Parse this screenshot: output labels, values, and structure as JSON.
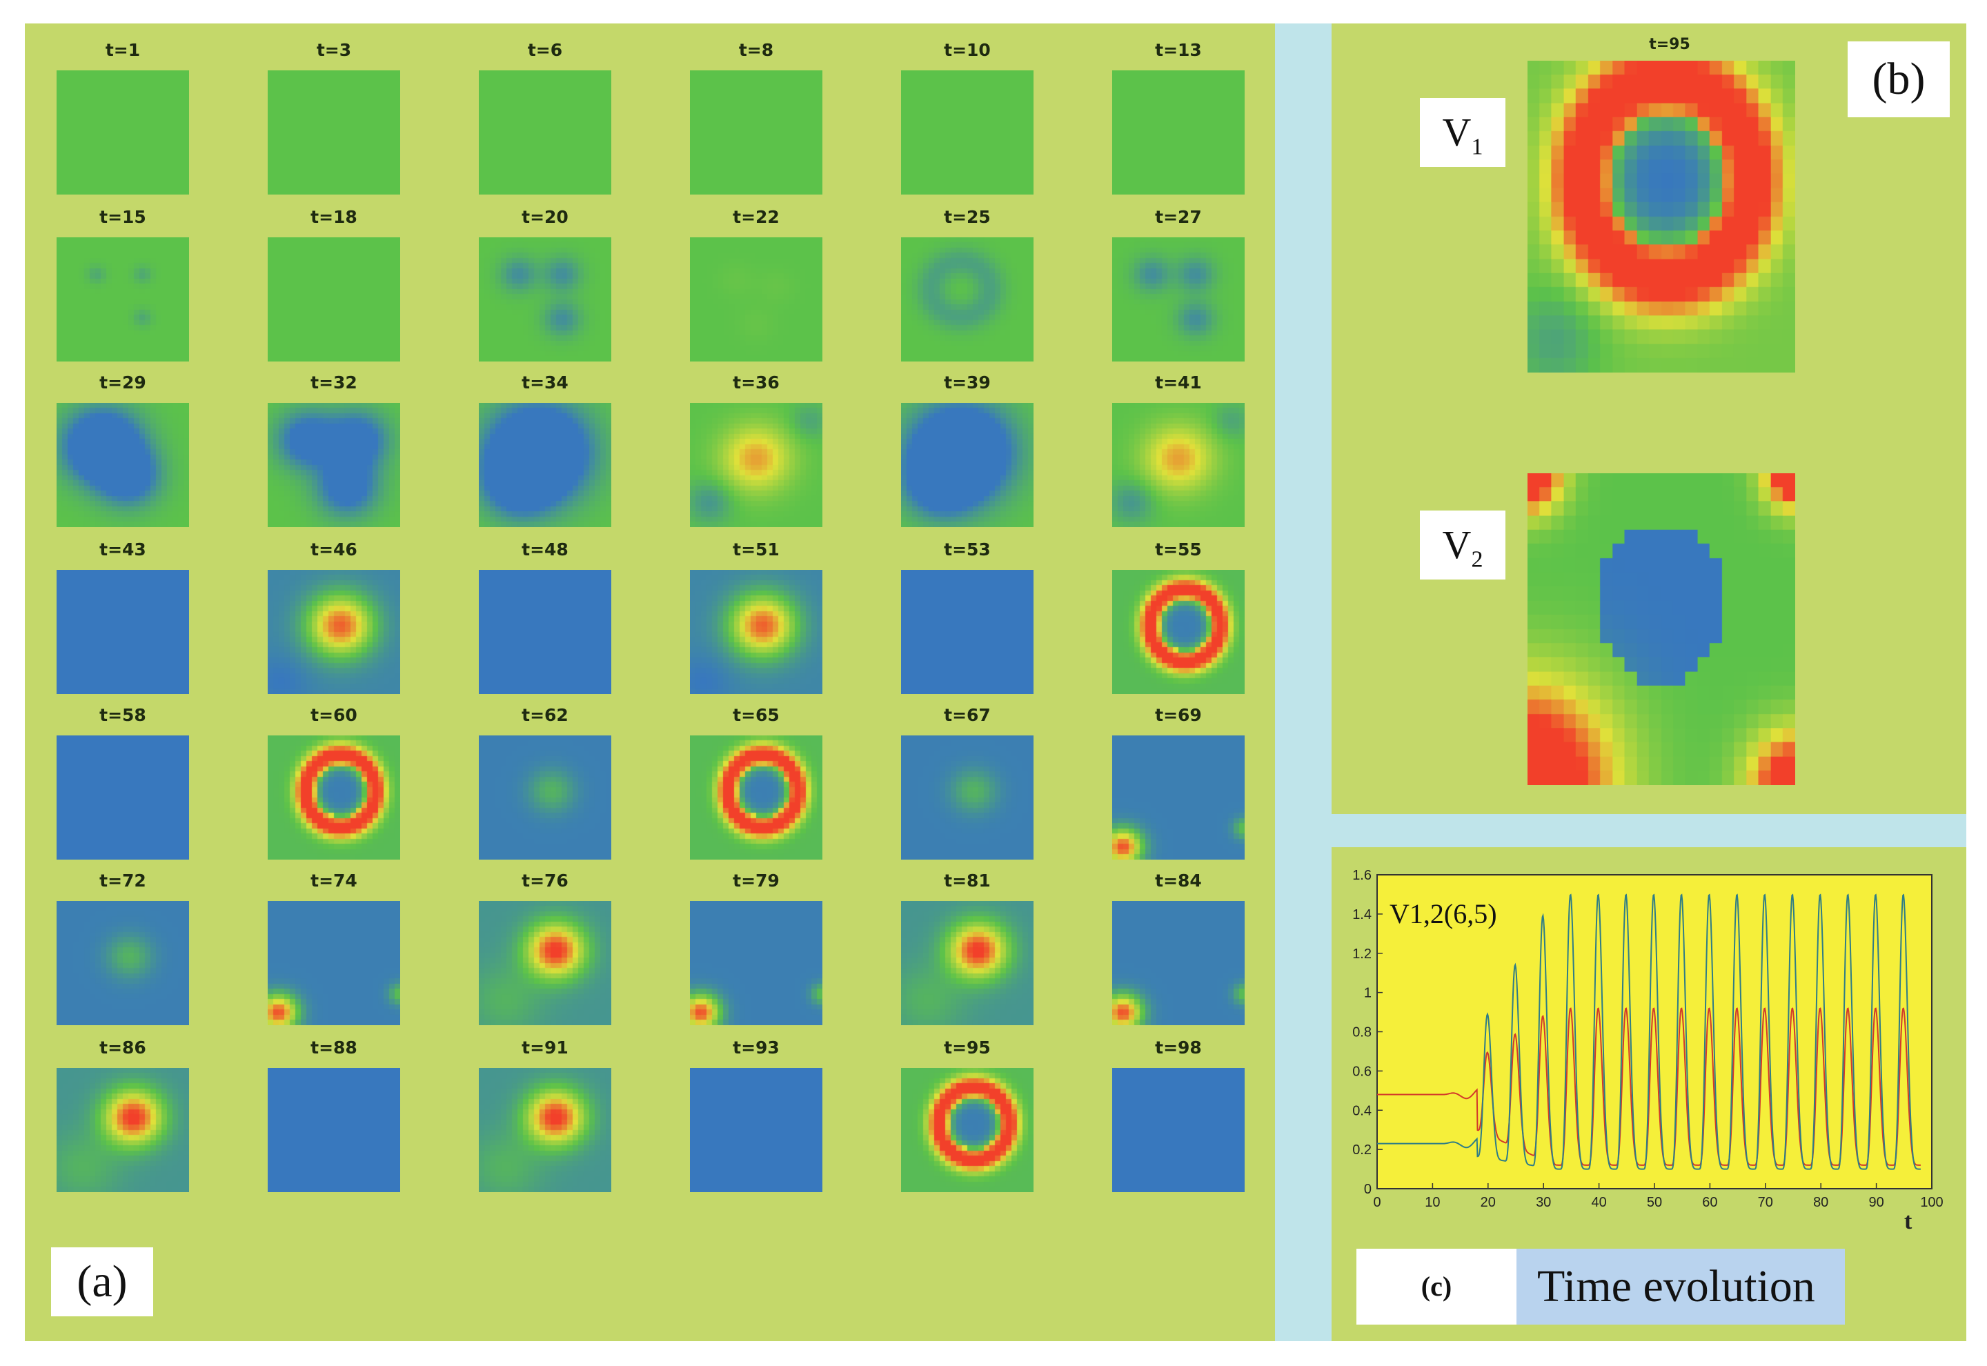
{
  "panel_a": {
    "label": "(a)",
    "frames": [
      {
        "t": "t=1",
        "pattern": "flat"
      },
      {
        "t": "t=3",
        "pattern": "flat"
      },
      {
        "t": "t=6",
        "pattern": "flat"
      },
      {
        "t": "t=8",
        "pattern": "flat"
      },
      {
        "t": "t=10",
        "pattern": "flat"
      },
      {
        "t": "t=13",
        "pattern": "flat"
      },
      {
        "t": "t=15",
        "pattern": "seeds"
      },
      {
        "t": "t=18",
        "pattern": "flat"
      },
      {
        "t": "t=20",
        "pattern": "three-blobs"
      },
      {
        "t": "t=22",
        "pattern": "faint"
      },
      {
        "t": "t=25",
        "pattern": "ring-green"
      },
      {
        "t": "t=27",
        "pattern": "three-blobs"
      },
      {
        "t": "t=29",
        "pattern": "blob-blue"
      },
      {
        "t": "t=32",
        "pattern": "three-large"
      },
      {
        "t": "t=34",
        "pattern": "blob-blue-large"
      },
      {
        "t": "t=36",
        "pattern": "cross-yellow"
      },
      {
        "t": "t=39",
        "pattern": "blob-blue-large"
      },
      {
        "t": "t=41",
        "pattern": "cross-yellow"
      },
      {
        "t": "t=43",
        "pattern": "all-blue"
      },
      {
        "t": "t=46",
        "pattern": "hot-center"
      },
      {
        "t": "t=48",
        "pattern": "all-blue"
      },
      {
        "t": "t=51",
        "pattern": "hot-center"
      },
      {
        "t": "t=53",
        "pattern": "all-blue"
      },
      {
        "t": "t=55",
        "pattern": "red-ring"
      },
      {
        "t": "t=58",
        "pattern": "all-blue"
      },
      {
        "t": "t=60",
        "pattern": "red-ring"
      },
      {
        "t": "t=62",
        "pattern": "blue-green-spot"
      },
      {
        "t": "t=65",
        "pattern": "red-ring"
      },
      {
        "t": "t=67",
        "pattern": "blue-green-spot"
      },
      {
        "t": "t=69",
        "pattern": "blue-corner"
      },
      {
        "t": "t=72",
        "pattern": "blue-green-spot"
      },
      {
        "t": "t=74",
        "pattern": "blue-corner"
      },
      {
        "t": "t=76",
        "pattern": "red-core"
      },
      {
        "t": "t=79",
        "pattern": "blue-corner"
      },
      {
        "t": "t=81",
        "pattern": "red-core"
      },
      {
        "t": "t=84",
        "pattern": "blue-corner"
      },
      {
        "t": "t=86",
        "pattern": "red-core"
      },
      {
        "t": "t=88",
        "pattern": "all-blue"
      },
      {
        "t": "t=91",
        "pattern": "red-core"
      },
      {
        "t": "t=93",
        "pattern": "all-blue"
      },
      {
        "t": "t=95",
        "pattern": "red-ring"
      },
      {
        "t": "t=98",
        "pattern": "all-blue"
      }
    ]
  },
  "panel_b": {
    "label": "(b)",
    "frame_title": "t=95",
    "v1_label": "V",
    "v1_sub": "1",
    "v2_label": "V",
    "v2_sub": "2"
  },
  "panel_c": {
    "label": "(c)",
    "caption": "Time evolution"
  },
  "colors": {
    "background": "#c4d86a",
    "gap": "#bfe4ea",
    "green": "#5cc24a",
    "blue": "#3878be",
    "red": "#f2402a",
    "yellow": "#dfe03a",
    "plot_bg": "#f5ef3a"
  },
  "chart_data": {
    "type": "line",
    "title": "",
    "annotation": "V1,2(6,5)",
    "xlabel": "t",
    "ylabel": "",
    "xlim": [
      0,
      100
    ],
    "ylim": [
      0,
      1.6
    ],
    "xticks": [
      0,
      10,
      20,
      30,
      40,
      50,
      60,
      70,
      80,
      90,
      100
    ],
    "yticks": [
      0,
      0.2,
      0.4,
      0.6,
      0.8,
      1,
      1.2,
      1.4,
      1.6
    ],
    "series": [
      {
        "name": "V1 (6,5)",
        "color": "#d23a2a",
        "baseline": 0.48,
        "oscillation_start": 18,
        "period": 5,
        "peak": 0.92,
        "trough": 0.12
      },
      {
        "name": "V2 (6,5)",
        "color": "#2f7d86",
        "baseline": 0.23,
        "oscillation_start": 18,
        "period": 5,
        "peak": 1.5,
        "trough": 0.1
      }
    ]
  }
}
